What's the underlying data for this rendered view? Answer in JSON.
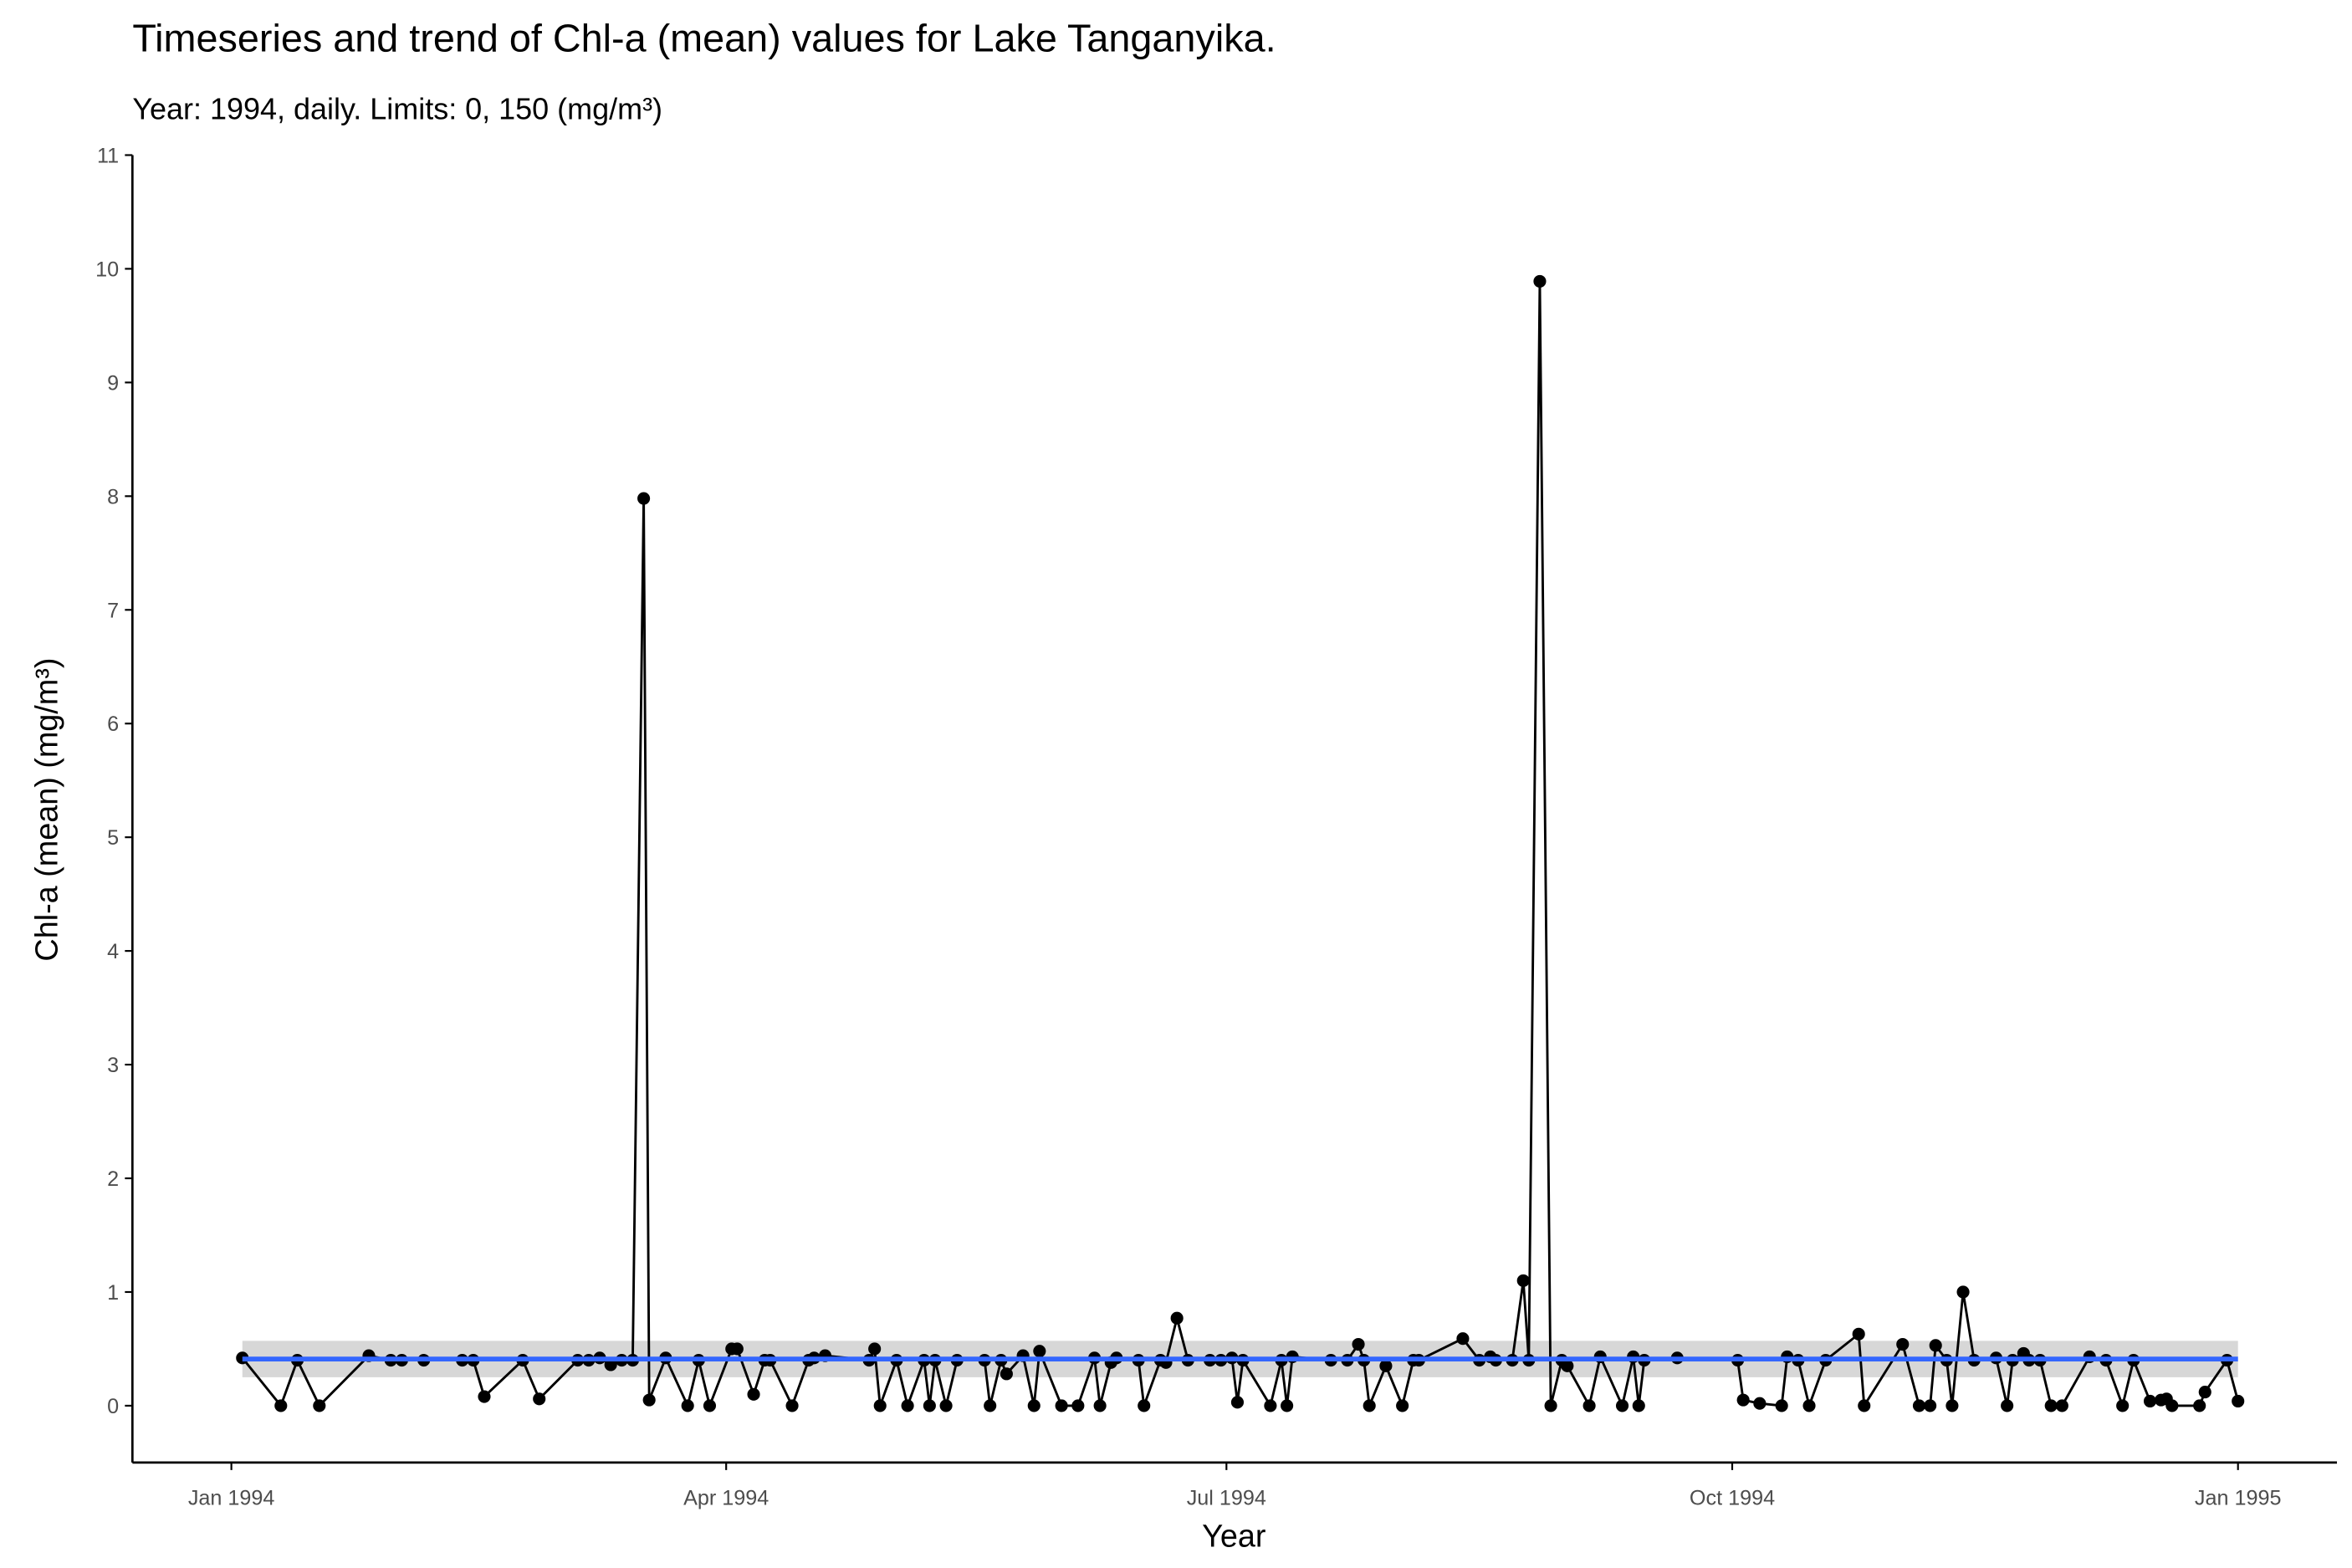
{
  "chart_data": {
    "type": "line",
    "title": "Timeseries  and trend of Chl-a (mean) values for Lake Tanganyika.",
    "subtitle": "Year: 1994, daily. Limits: 0, 150 (mg/m³)",
    "x_label": "Year",
    "y_label": "Chl-a (mean) (mg/m³)",
    "xlim": [
      -18,
      383
    ],
    "ylim": [
      -0.5,
      11
    ],
    "xticks": [
      {
        "value": 0,
        "label": "Jan 1994"
      },
      {
        "value": 90,
        "label": "Apr 1994"
      },
      {
        "value": 181,
        "label": "Jul 1994"
      },
      {
        "value": 273,
        "label": "Oct 1994"
      },
      {
        "value": 365,
        "label": "Jan 1995"
      }
    ],
    "yticks": [
      0,
      1,
      2,
      3,
      4,
      5,
      6,
      7,
      8,
      9,
      10,
      11
    ],
    "grid": false,
    "markers": true,
    "x": [
      2,
      9,
      12,
      16,
      25,
      29,
      31,
      35,
      42,
      44,
      46,
      53,
      56,
      63,
      65,
      67,
      69,
      71,
      73,
      75,
      76,
      79,
      83,
      85,
      87,
      91,
      92,
      95,
      97,
      98,
      102,
      105,
      106,
      108,
      116,
      117,
      118,
      121,
      123,
      126,
      127,
      128,
      130,
      132,
      137,
      138,
      140,
      141,
      144,
      146,
      147,
      151,
      154,
      157,
      158,
      160,
      161,
      165,
      166,
      169,
      170,
      172,
      174,
      178,
      180,
      182,
      183,
      184,
      189,
      191,
      192,
      193,
      200,
      203,
      205,
      206,
      207,
      210,
      213,
      215,
      216,
      224,
      227,
      229,
      230,
      233,
      235,
      236,
      238,
      240,
      242,
      243,
      247,
      249,
      253,
      255,
      256,
      257,
      263,
      274,
      275,
      278,
      282,
      283,
      285,
      287,
      290,
      296,
      297,
      304,
      307,
      309,
      310,
      312,
      313,
      315,
      317,
      321,
      323,
      324,
      326,
      327,
      329,
      331,
      333,
      338,
      341,
      344,
      346,
      349,
      351,
      352,
      353,
      358,
      359,
      363,
      365
    ],
    "series": [
      {
        "color": "#000000",
        "values": [
          0.42,
          0,
          0.4,
          0,
          0.44,
          0.4,
          0.4,
          0.4,
          0.4,
          0.4,
          0.08,
          0.4,
          0.06,
          0.4,
          0.4,
          0.42,
          0.36,
          0.4,
          0.4,
          7.98,
          0.05,
          0.42,
          0,
          0.4,
          0,
          0.5,
          0.5,
          0.1,
          0.4,
          0.4,
          0,
          0.4,
          0.42,
          0.44,
          0.4,
          0.5,
          0,
          0.4,
          0,
          0.4,
          0,
          0.4,
          0,
          0.4,
          0.4,
          0,
          0.4,
          0.28,
          0.44,
          0,
          0.48,
          0,
          0,
          0.42,
          0,
          0.38,
          0.42,
          0.4,
          0,
          0.4,
          0.38,
          0.77,
          0.4,
          0.4,
          0.4,
          0.42,
          0.03,
          0.4,
          0,
          0.4,
          0,
          0.43,
          0.4,
          0.4,
          0.54,
          0.4,
          0,
          0.35,
          0,
          0.4,
          0.4,
          0.59,
          0.4,
          0.43,
          0.4,
          0.4,
          1.1,
          0.4,
          9.89,
          0,
          0.4,
          0.35,
          0,
          0.43,
          0,
          0.43,
          0,
          0.4,
          0.42,
          0.4,
          0.05,
          0.02,
          0,
          0.43,
          0.4,
          0,
          0.4,
          0.63,
          0,
          0.54,
          0,
          0,
          0.53,
          0.4,
          0,
          1.0,
          0.4,
          0.42,
          0,
          0.4,
          0.46,
          0.4,
          0.4,
          0,
          0,
          0.43,
          0.4,
          0,
          0.4,
          0.04,
          0.05,
          0.06,
          0,
          0,
          0.12,
          0.4,
          0.04
        ]
      }
    ],
    "trend": {
      "color": "#3366ff",
      "band_color": "#d3d3d3",
      "x": [
        2,
        365
      ],
      "values": [
        0.41,
        0.41
      ],
      "lower": [
        0.25,
        0.25
      ],
      "upper": [
        0.57,
        0.57
      ]
    }
  }
}
